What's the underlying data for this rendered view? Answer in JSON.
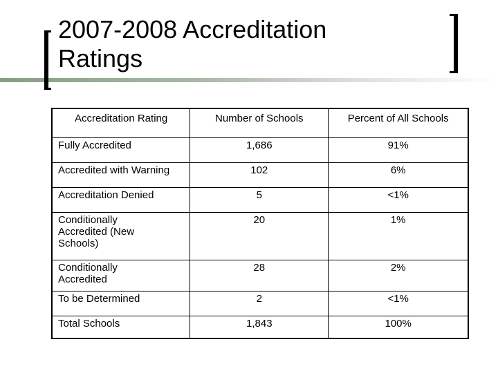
{
  "slide": {
    "title": "2007-2008 Accreditation Ratings"
  },
  "table": {
    "headers": [
      "Accreditation Rating",
      "Number of Schools",
      "Percent of All Schools"
    ],
    "rows": [
      {
        "rating": "Fully Accredited",
        "schools": "1,686",
        "percent": "91%"
      },
      {
        "rating": "Accredited with Warning",
        "schools": "102",
        "percent": "6%"
      },
      {
        "rating": "Accreditation Denied",
        "schools": "5",
        "percent": "<1%"
      },
      {
        "rating": "Conditionally Accredited (New Schools)",
        "schools": "20",
        "percent": "1%"
      },
      {
        "rating": "Conditionally Accredited",
        "schools": "28",
        "percent": "2%"
      },
      {
        "rating": "To be Determined",
        "schools": "2",
        "percent": "<1%"
      },
      {
        "rating": "Total Schools",
        "schools": "1,843",
        "percent": "100%"
      }
    ]
  }
}
